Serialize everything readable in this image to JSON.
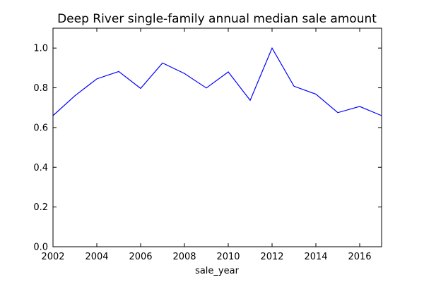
{
  "chart_data": {
    "type": "line",
    "title": "Deep River single-family annual median sale amount",
    "xlabel": "sale_year",
    "ylabel": "",
    "xlim": [
      2002,
      2017
    ],
    "ylim": [
      0.0,
      1.1
    ],
    "x_ticks": [
      2002,
      2004,
      2006,
      2008,
      2010,
      2012,
      2014,
      2016
    ],
    "x_tick_labels": [
      "2002",
      "2004",
      "2006",
      "2008",
      "2010",
      "2012",
      "2014",
      "2016"
    ],
    "y_ticks": [
      0.0,
      0.2,
      0.4,
      0.6,
      0.8,
      1.0
    ],
    "y_tick_labels": [
      "0.0",
      "0.2",
      "0.4",
      "0.6",
      "0.8",
      "1.0"
    ],
    "grid": false,
    "legend": "none",
    "series": [
      {
        "color": "#0000ff",
        "x": [
          2002,
          2003,
          2004,
          2005,
          2006,
          2007,
          2008,
          2009,
          2010,
          2011,
          2012,
          2013,
          2014,
          2015,
          2016,
          2017
        ],
        "y": [
          0.66,
          0.76,
          0.845,
          0.882,
          0.797,
          0.925,
          0.872,
          0.799,
          0.88,
          0.737,
          1.0,
          0.808,
          0.768,
          0.675,
          0.706,
          0.66
        ]
      }
    ]
  }
}
